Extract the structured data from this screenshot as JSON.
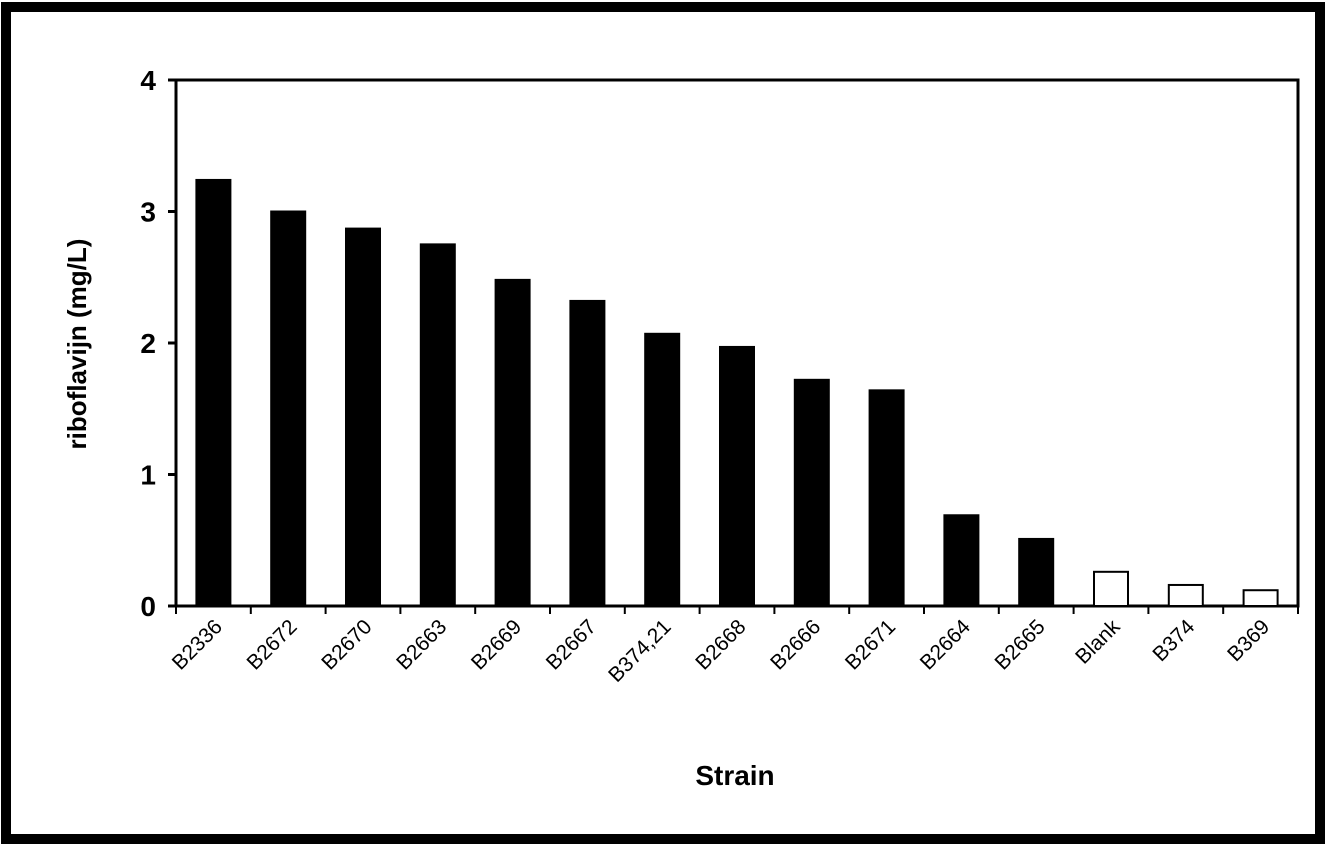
{
  "chart_data": {
    "type": "bar",
    "title": "",
    "xlabel": "Strain",
    "ylabel": "riboflavijn (mg/L)",
    "ylim": [
      0,
      4
    ],
    "yticks": [
      "0",
      "1",
      "2",
      "3",
      "4"
    ],
    "categories": [
      "B2336",
      "B2672",
      "B2670",
      "B2663",
      "B2669",
      "B2667",
      "B374,21",
      "B2668",
      "B2666",
      "B2671",
      "B2664",
      "B2665",
      "Blank",
      "B374",
      "B369"
    ],
    "values": [
      3.24,
      3.0,
      2.87,
      2.75,
      2.48,
      2.32,
      2.07,
      1.97,
      1.72,
      1.64,
      0.69,
      0.51,
      0.26,
      0.16,
      0.12
    ],
    "bar_fills": [
      "#000000",
      "#000000",
      "#000000",
      "#000000",
      "#000000",
      "#000000",
      "#000000",
      "#000000",
      "#000000",
      "#000000",
      "#000000",
      "#000000",
      "#ffffff",
      "#ffffff",
      "#ffffff"
    ],
    "grid": false,
    "legend": "none",
    "colors": {
      "frame": "#000000",
      "bar": "#000000",
      "control_bar": "#ffffff",
      "background": "#ffffff"
    }
  }
}
